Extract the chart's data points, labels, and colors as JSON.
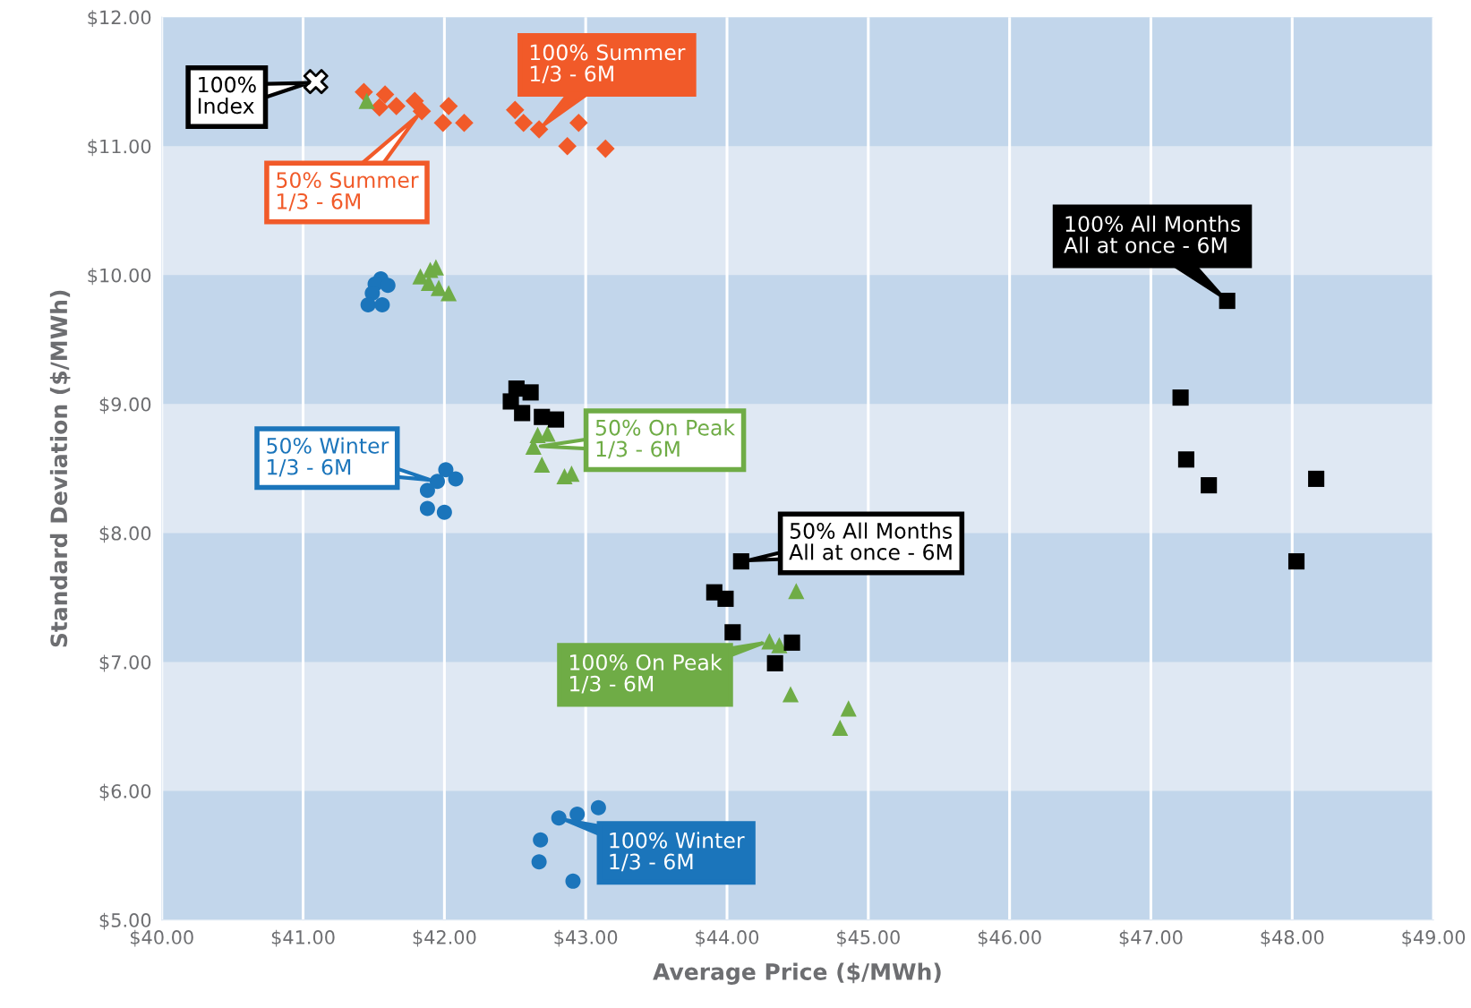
{
  "chart_data": {
    "type": "scatter",
    "xlabel": "Average Price ($/MWh)",
    "ylabel": "Standard Deviation ($/MWh)",
    "xlim": [
      40,
      49
    ],
    "ylim": [
      5,
      12
    ],
    "xticks": [
      {
        "value": 40,
        "label": "$40.00"
      },
      {
        "value": 41,
        "label": "$41.00"
      },
      {
        "value": 42,
        "label": "$42.00"
      },
      {
        "value": 43,
        "label": "$43.00"
      },
      {
        "value": 44,
        "label": "$44.00"
      },
      {
        "value": 45,
        "label": "$45.00"
      },
      {
        "value": 46,
        "label": "$46.00"
      },
      {
        "value": 47,
        "label": "$47.00"
      },
      {
        "value": 48,
        "label": "$48.00"
      },
      {
        "value": 49,
        "label": "$49.00"
      }
    ],
    "yticks": [
      {
        "value": 5,
        "label": "$5.00"
      },
      {
        "value": 6,
        "label": "$6.00"
      },
      {
        "value": 7,
        "label": "$7.00"
      },
      {
        "value": 8,
        "label": "$8.00"
      },
      {
        "value": 9,
        "label": "$9.00"
      },
      {
        "value": 10,
        "label": "$10.00"
      },
      {
        "value": 11,
        "label": "$11.00"
      },
      {
        "value": 12,
        "label": "$12.00"
      }
    ],
    "grid": "x",
    "bands": [
      {
        "axis": "y",
        "from": 5,
        "to": 6,
        "color": "#c2d6eb"
      },
      {
        "axis": "y",
        "from": 7,
        "to": 8,
        "color": "#c2d6eb"
      },
      {
        "axis": "y",
        "from": 9,
        "to": 10,
        "color": "#c2d6eb"
      },
      {
        "axis": "y",
        "from": 11,
        "to": 12,
        "color": "#c2d6eb"
      }
    ],
    "series": [
      {
        "color": "#ffffff",
        "marker": "cross",
        "x": [
          41.09
        ],
        "values": [
          11.5
        ]
      },
      {
        "color": "#f15a29",
        "marker": "diamond",
        "x": [
          41.43,
          41.58,
          41.54,
          41.66,
          41.79,
          41.84,
          41.99,
          42.03,
          42.14
        ],
        "values": [
          11.42,
          11.4,
          11.3,
          11.31,
          11.35,
          11.27,
          11.18,
          11.31,
          11.18
        ]
      },
      {
        "color": "#f15a29",
        "marker": "diamond",
        "x": [
          42.5,
          42.56,
          42.67,
          42.87,
          42.95,
          43.14
        ],
        "values": [
          11.28,
          11.18,
          11.13,
          11.0,
          11.18,
          10.98
        ]
      },
      {
        "color": "#1b75bb",
        "marker": "circle",
        "x": [
          41.55,
          41.51,
          41.6,
          41.49,
          41.46,
          41.56
        ],
        "values": [
          9.97,
          9.93,
          9.92,
          9.86,
          9.77,
          9.77
        ]
      },
      {
        "color": "#1b75bb",
        "marker": "circle",
        "x": [
          41.95,
          42.01,
          42.08,
          41.88,
          41.88,
          42.0
        ],
        "values": [
          8.4,
          8.49,
          8.42,
          8.33,
          8.19,
          8.16
        ]
      },
      {
        "color": "#1b75bb",
        "marker": "circle",
        "x": [
          42.81,
          42.94,
          43.09,
          42.68,
          42.67,
          42.91
        ],
        "values": [
          5.79,
          5.82,
          5.87,
          5.62,
          5.45,
          5.3
        ]
      },
      {
        "color": "#6fac46",
        "marker": "triangle",
        "x": [
          41.45,
          41.83,
          41.9,
          41.94,
          41.89,
          41.96,
          42.03
        ],
        "values": [
          11.35,
          9.99,
          10.04,
          10.06,
          9.94,
          9.9,
          9.86
        ]
      },
      {
        "color": "#6fac46",
        "marker": "triangle",
        "x": [
          42.66,
          42.73,
          42.63,
          42.69,
          42.85,
          42.9
        ],
        "values": [
          8.76,
          8.77,
          8.67,
          8.53,
          8.44,
          8.46
        ]
      },
      {
        "color": "#6fac46",
        "marker": "triangle",
        "x": [
          44.3,
          44.37,
          44.49,
          44.45,
          44.86,
          44.8
        ],
        "values": [
          7.16,
          7.13,
          7.55,
          6.75,
          6.64,
          6.49
        ]
      },
      {
        "color": "#000000",
        "marker": "square",
        "x": [
          42.51,
          42.61,
          42.47,
          42.55,
          42.69,
          42.79
        ],
        "values": [
          9.12,
          9.09,
          9.02,
          8.93,
          8.9,
          8.88
        ]
      },
      {
        "color": "#000000",
        "marker": "square",
        "x": [
          44.1,
          43.91,
          43.99,
          44.04,
          44.46,
          44.34
        ],
        "values": [
          7.78,
          7.54,
          7.49,
          7.23,
          7.15,
          6.99
        ]
      },
      {
        "color": "#000000",
        "marker": "square",
        "x": [
          47.54,
          47.21,
          47.25,
          47.41,
          48.17,
          48.03
        ],
        "values": [
          9.8,
          9.05,
          8.57,
          8.37,
          8.42,
          7.78
        ]
      }
    ],
    "annotations": [
      {
        "text": "100%\nIndex",
        "x": 41.09,
        "y": 11.5
      },
      {
        "text": "100% Summer\n1/3 - 6M",
        "x": 42.67,
        "y": 11.13
      },
      {
        "text": "50% Summer\n1/3 - 6M",
        "x": 41.84,
        "y": 11.27
      },
      {
        "text": "100% All Months\nAll at once - 6M",
        "x": 47.54,
        "y": 9.8
      },
      {
        "text": "50% On Peak\n1/3 - 6M",
        "x": 42.63,
        "y": 8.67
      },
      {
        "text": "50% Winter\n1/3 - 6M",
        "x": 41.95,
        "y": 8.4
      },
      {
        "text": "50% All Months\nAll at once - 6M",
        "x": 44.1,
        "y": 7.78
      },
      {
        "text": "100% On Peak\n1/3 - 6M",
        "x": 44.3,
        "y": 7.16
      },
      {
        "text": "100% Winter\n1/3 - 6M",
        "x": 42.81,
        "y": 5.79
      }
    ]
  }
}
